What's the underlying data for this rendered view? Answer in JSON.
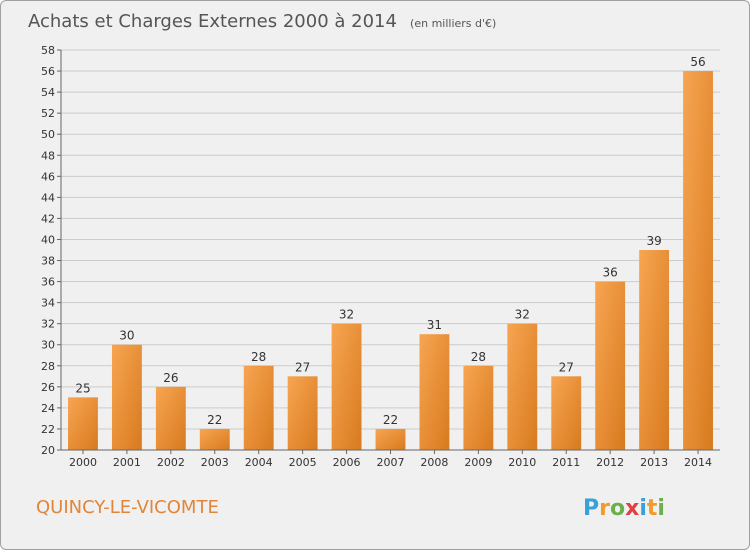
{
  "title": "Achats et Charges Externes 2000 à 2014",
  "unit_note": "(en milliers d'€)",
  "commune": "QUINCY-LE-VICOMTE",
  "logo": {
    "text": "Proxiti",
    "letters": [
      "P",
      "r",
      "o",
      "x",
      "i",
      "t",
      "i"
    ],
    "colors": [
      "#3aa0d8",
      "#f39b2a",
      "#6ab04c",
      "#e04040",
      "#3aa0d8",
      "#f39b2a",
      "#6ab04c"
    ]
  },
  "colors": {
    "bar_light": "#f7a552",
    "bar_dark": "#d87a1e",
    "background": "#f0f0f0",
    "grid": "#cccccc",
    "commune": "#e0863a"
  },
  "chart_data": {
    "type": "bar",
    "title": "Achats et Charges Externes 2000 à 2014",
    "subtitle": "(en milliers d'€)",
    "categories": [
      "2000",
      "2001",
      "2002",
      "2003",
      "2004",
      "2005",
      "2006",
      "2007",
      "2008",
      "2009",
      "2010",
      "2011",
      "2012",
      "2013",
      "2014"
    ],
    "values": [
      25,
      30,
      26,
      22,
      28,
      27,
      32,
      22,
      31,
      28,
      32,
      27,
      36,
      39,
      56
    ],
    "xlabel": "",
    "ylabel": "",
    "ylim": [
      20,
      58
    ],
    "yticks": [
      20,
      22,
      24,
      26,
      28,
      30,
      32,
      34,
      36,
      38,
      40,
      42,
      44,
      46,
      48,
      50,
      52,
      54,
      56,
      58
    ],
    "grid": true,
    "data_labels": true
  }
}
